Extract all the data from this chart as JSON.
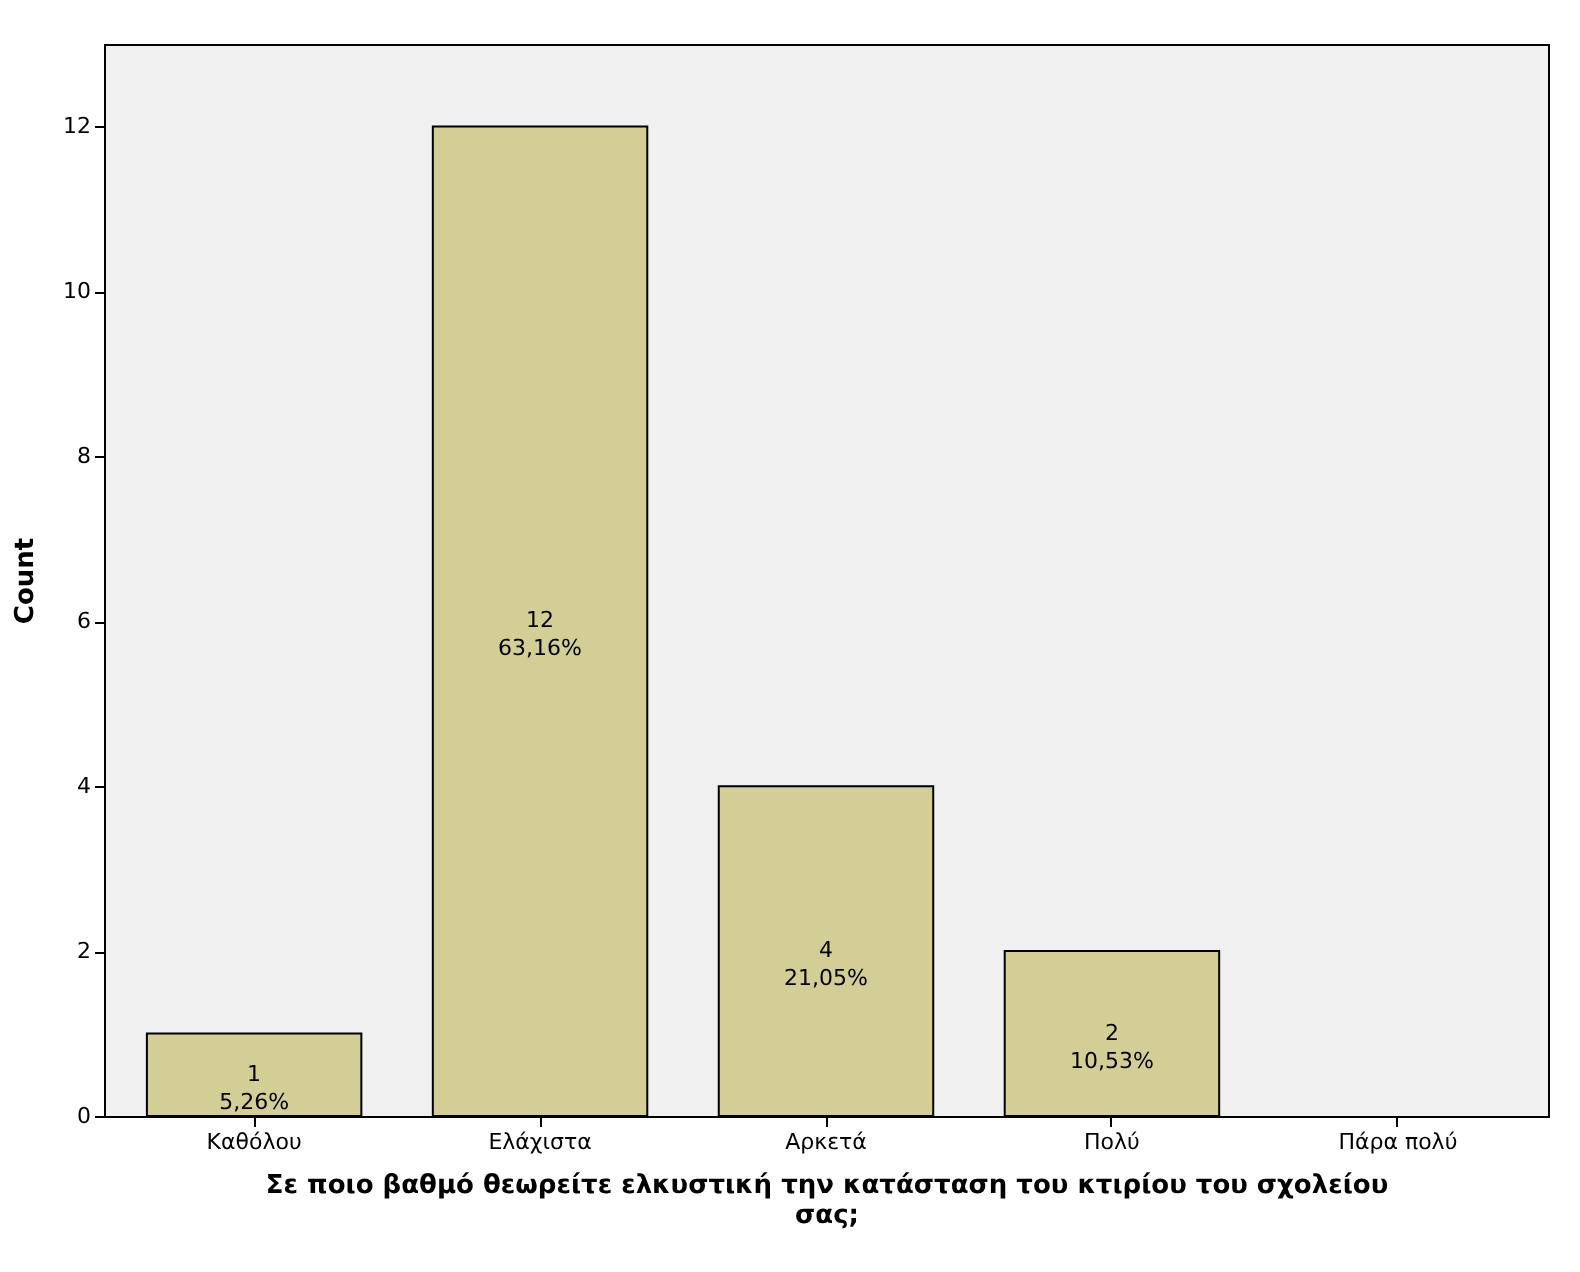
{
  "chart_data": {
    "type": "bar",
    "xlabel": "Σε ποιο βαθμό θεωρείτε ελκυστική την κατάσταση του κτιρίου του σχολείου σας;",
    "ylabel": "Count",
    "categories": [
      "Καθόλου",
      "Ελάχιστα",
      "Αρκετά",
      "Πολύ",
      "Πάρα πολύ"
    ],
    "values": [
      1,
      12,
      4,
      2,
      0
    ],
    "value_labels": [
      "1\n5,26%",
      "12\n63,16%",
      "4\n21,05%",
      "2\n10,53%",
      null
    ],
    "color": "#d3ce95",
    "ylim": [
      0,
      13
    ],
    "yticks": [
      0,
      2,
      4,
      6,
      8,
      10,
      12
    ],
    "grid": false
  }
}
